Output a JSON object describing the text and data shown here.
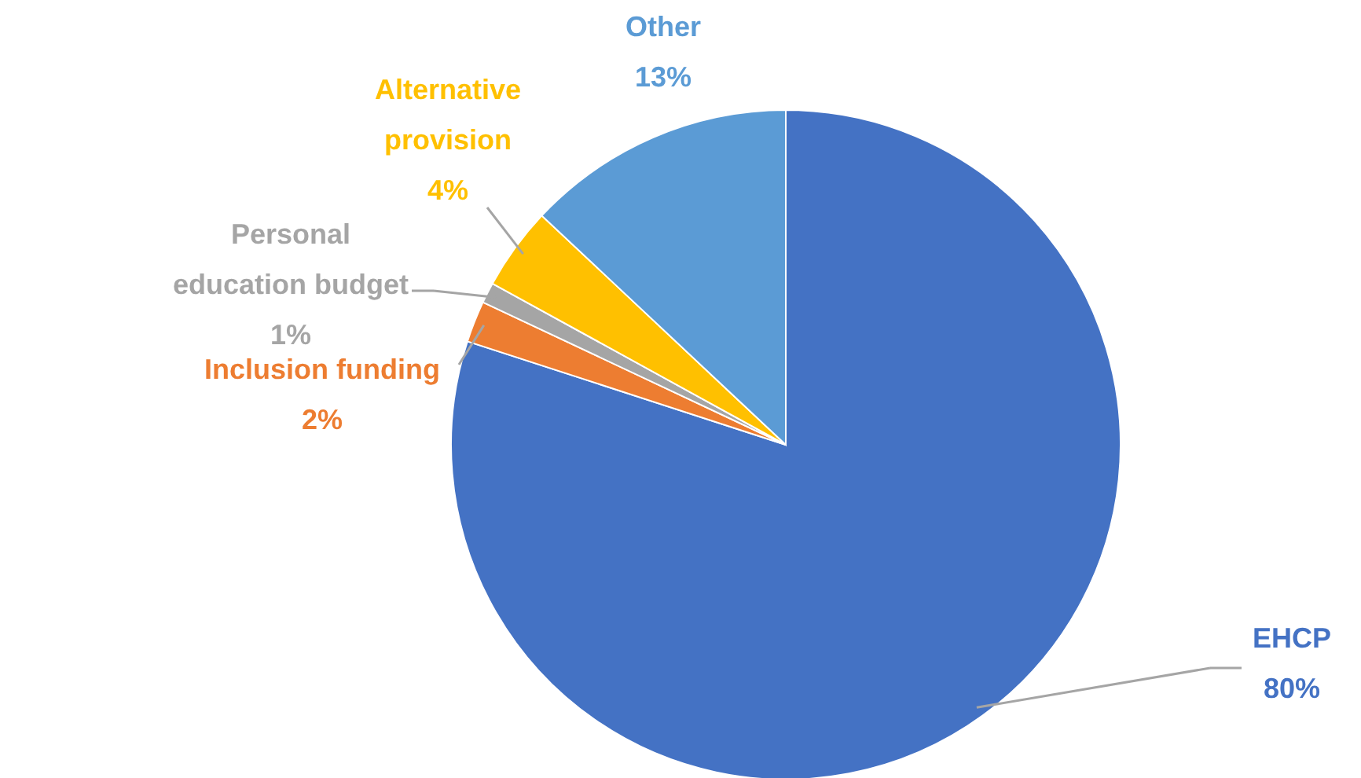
{
  "chart_data": {
    "type": "pie",
    "categories": [
      "EHCP",
      "Inclusion  funding",
      "Personal education budget",
      "Alternative provision",
      "Other"
    ],
    "values": [
      80,
      2,
      1,
      4,
      13
    ],
    "value_labels": [
      "80%",
      "2%",
      "1%",
      "4%",
      "13%"
    ],
    "colors": [
      "#4472c4",
      "#ed7d31",
      "#a5a5a5",
      "#ffc000",
      "#5b9bd5"
    ]
  }
}
